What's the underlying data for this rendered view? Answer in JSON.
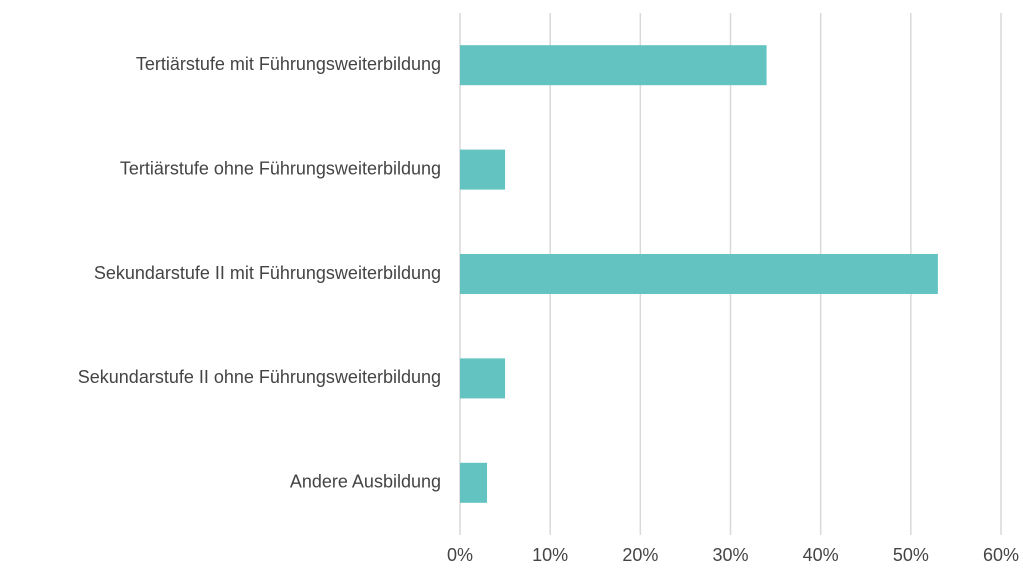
{
  "chart_data": {
    "type": "bar",
    "orientation": "horizontal",
    "categories": [
      "Tertiärstufe mit Führungsweiterbildung",
      "Tertiärstufe ohne Führungsweiterbildung",
      "Sekundarstufe II mit Führungsweiterbildung",
      "Sekundarstufe II ohne Führungsweiterbildung",
      "Andere Ausbildung"
    ],
    "values": [
      34,
      5,
      53,
      5,
      3
    ],
    "color": "#62c3c1",
    "xlim": [
      0,
      60
    ],
    "xticks": [
      {
        "value": 0,
        "label": "0%"
      },
      {
        "value": 10,
        "label": "10%"
      },
      {
        "value": 20,
        "label": "20%"
      },
      {
        "value": 30,
        "label": "30%"
      },
      {
        "value": 40,
        "label": "40%"
      },
      {
        "value": 50,
        "label": "50%"
      },
      {
        "value": 60,
        "label": "60%"
      }
    ],
    "grid": true
  }
}
